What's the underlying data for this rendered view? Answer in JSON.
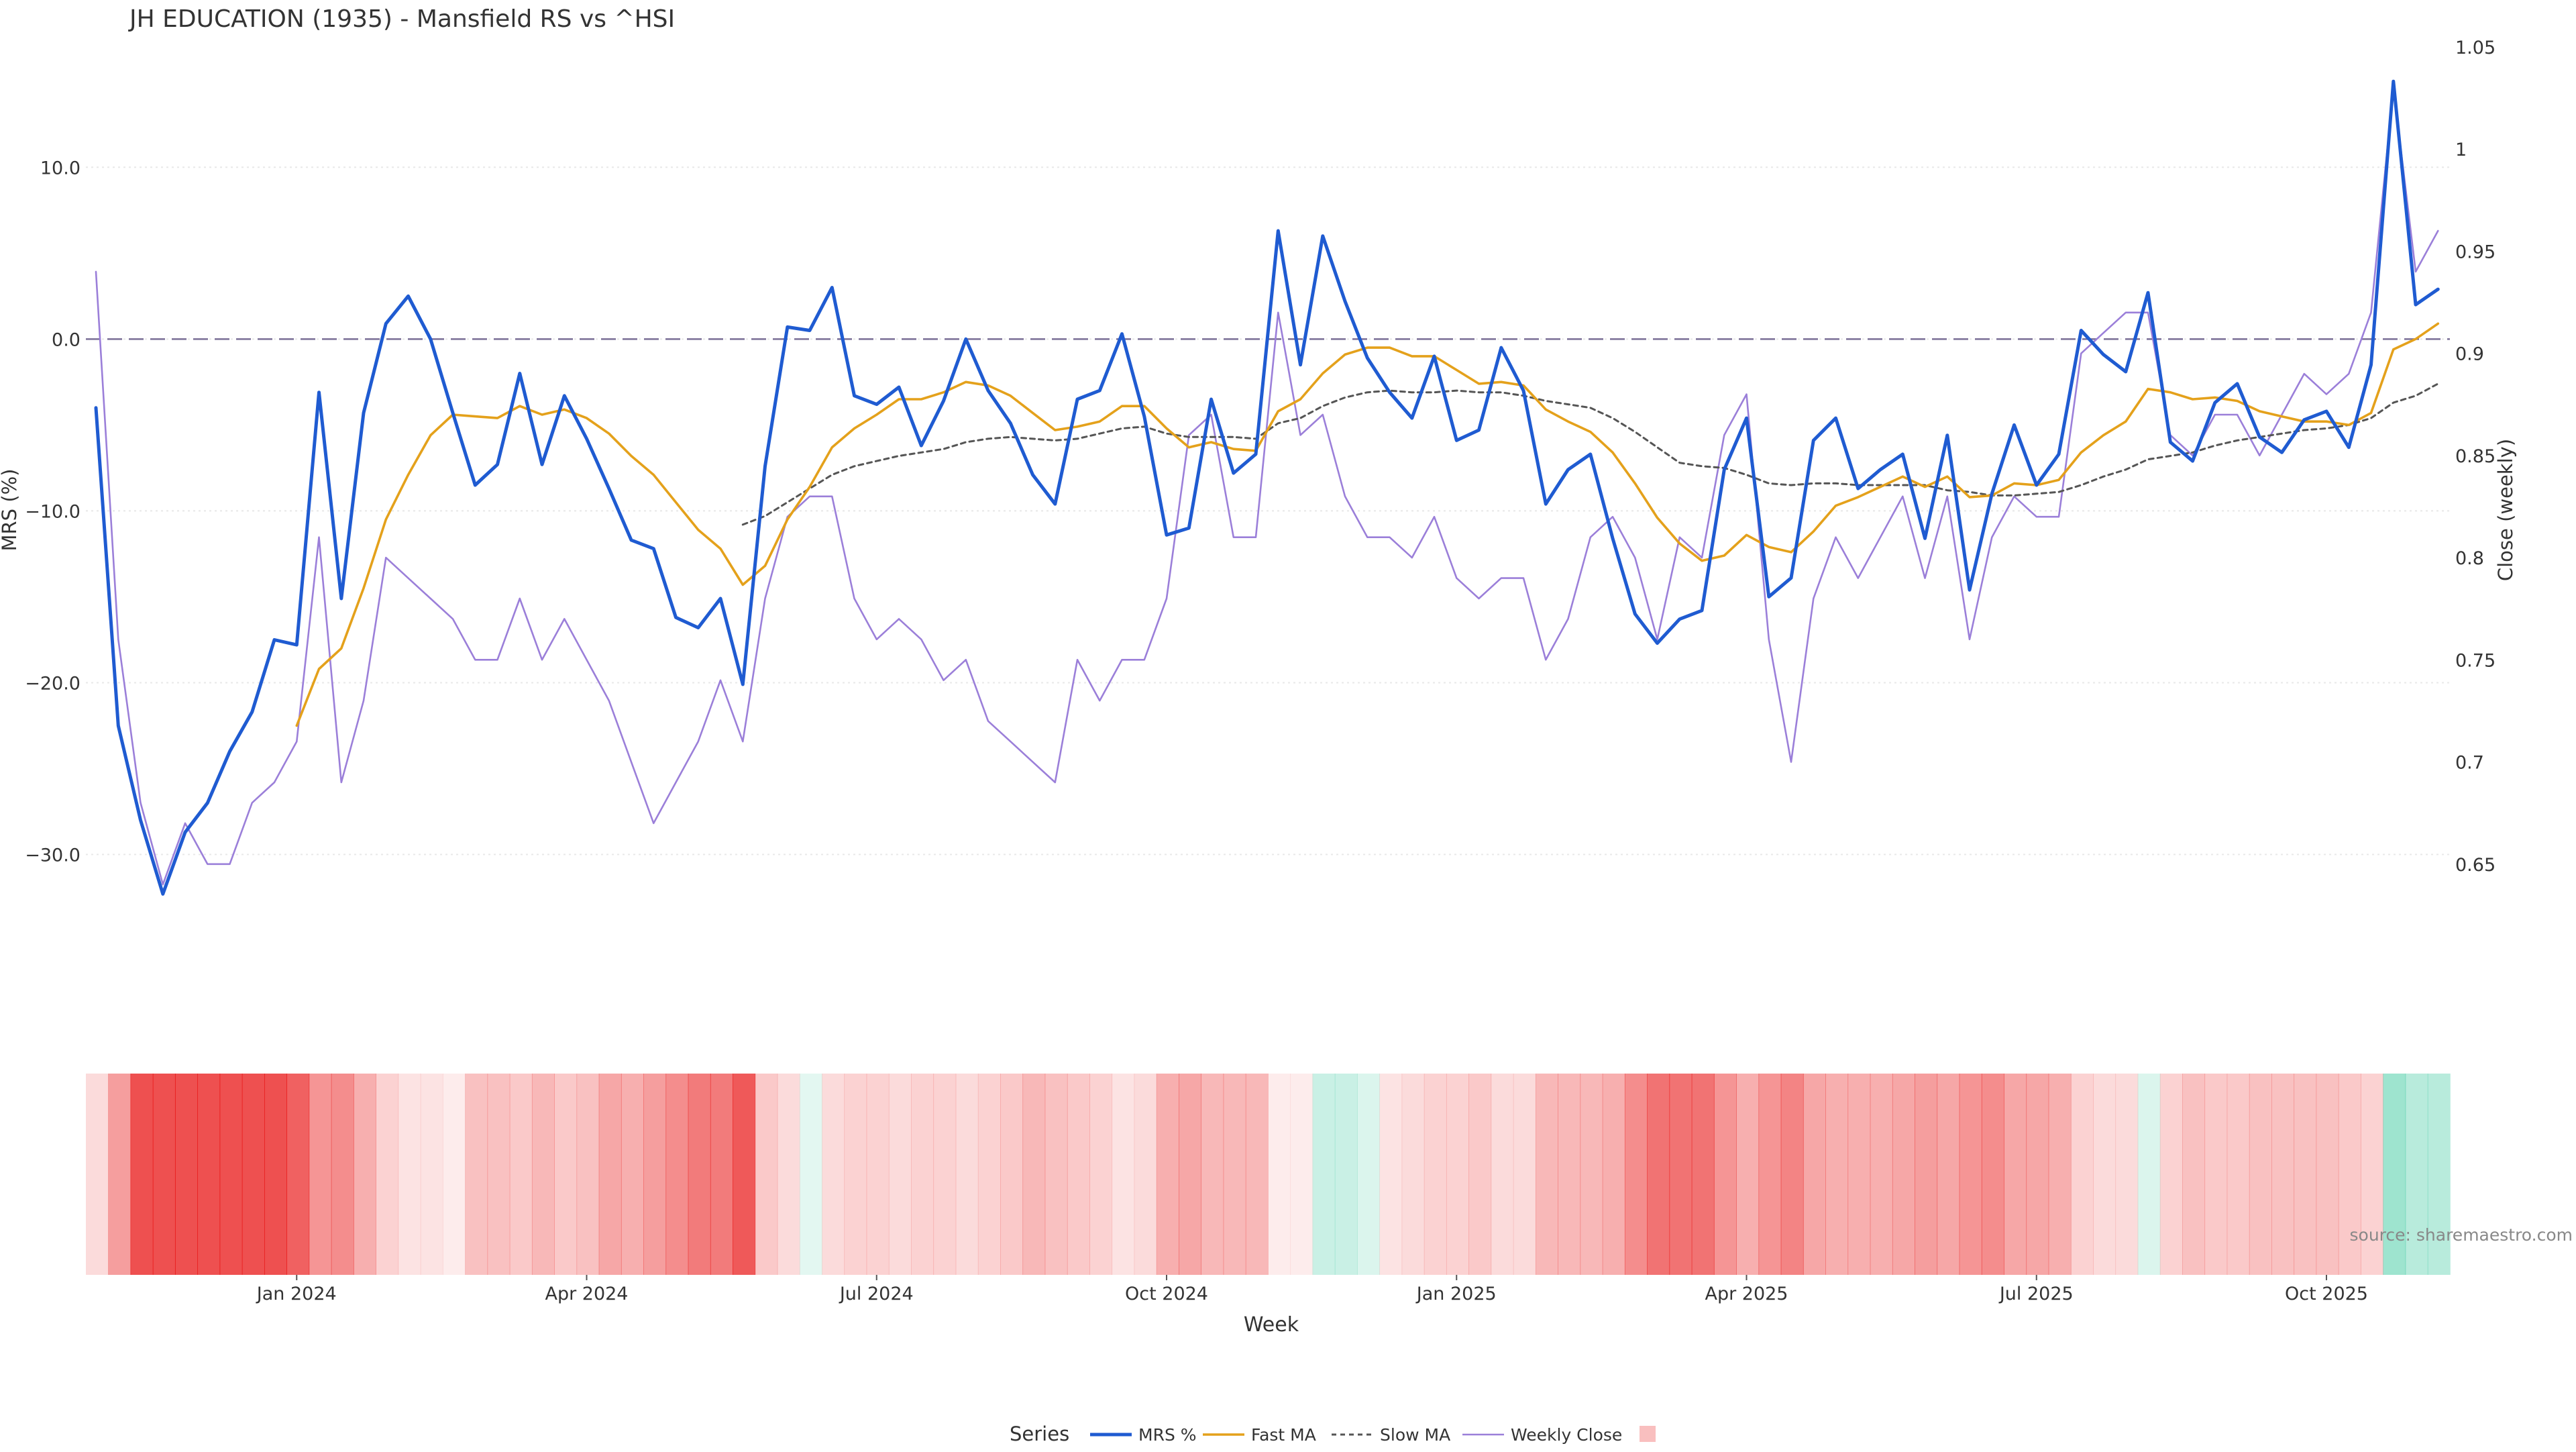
{
  "chart_data": {
    "type": "line",
    "title": "JH EDUCATION (1935) - Mansfield RS vs ^HSI",
    "xlabel": "Week",
    "ylabel_left": "MRS (%)",
    "ylabel_right": "Close (weekly)",
    "ylim_left": [
      -36.5,
      17
    ],
    "ylim_right": [
      0.6,
      1.05
    ],
    "yticks_left": [
      10,
      0,
      -10,
      -20,
      -30
    ],
    "yticks_left_labels": [
      "10.0",
      "0.0",
      "−10.0",
      "−20.0",
      "−30.0"
    ],
    "yticks_right": [
      1.05,
      1,
      0.95,
      0.9,
      0.85,
      0.8,
      0.75,
      0.7,
      0.65
    ],
    "yticks_right_labels": [
      "1.05",
      "1",
      "0.95",
      "0.9",
      "0.85",
      "0.8",
      "0.75",
      "0.7",
      "0.65"
    ],
    "x_tick_indices": [
      9,
      22,
      35,
      48,
      61,
      74,
      87,
      100
    ],
    "x_tick_labels": [
      "Jan 2024",
      "Apr 2024",
      "Jul 2024",
      "Oct 2024",
      "Jan 2025",
      "Apr 2025",
      "Jul 2025",
      "Oct 2025"
    ],
    "zero_line": 0,
    "series": [
      {
        "name": "MRS %",
        "color": "#1f5bd1",
        "style": "solid",
        "axis": "left",
        "values": [
          -4,
          -22.5,
          -28,
          -32.3,
          -28.7,
          -27,
          -24,
          -21.7,
          -17.5,
          -17.8,
          -3.1,
          -15.1,
          -4.3,
          0.9,
          2.5,
          0,
          -4.3,
          -8.5,
          -7.3,
          -2,
          -7.3,
          -3.3,
          -5.8,
          -8.7,
          -11.7,
          -12.2,
          -16.2,
          -16.8,
          -15.1,
          -20.1,
          -7.4,
          0.7,
          0.5,
          3,
          -3.3,
          -3.8,
          -2.8,
          -6.2,
          -3.6,
          0,
          -3,
          -4.9,
          -7.9,
          -9.6,
          -3.5,
          -3,
          0.3,
          -4.5,
          -11.4,
          -11,
          -3.5,
          -7.8,
          -6.7,
          6.3,
          -1.5,
          6,
          2.2,
          -1.1,
          -3.1,
          -4.6,
          -1,
          -5.9,
          -5.3,
          -0.5,
          -3,
          -9.6,
          -7.6,
          -6.7,
          -11.6,
          -16,
          -17.7,
          -16.3,
          -15.8,
          -7.6,
          -4.6,
          -15,
          -13.9,
          -5.9,
          -4.6,
          -8.7,
          -7.6,
          -6.7,
          -11.6,
          -5.6,
          -14.6,
          -9,
          -5,
          -8.5,
          -6.7,
          0.5,
          -0.9,
          -1.9,
          2.7,
          -6,
          -7.1,
          -3.7,
          -2.6,
          -5.7,
          -6.6,
          -4.7,
          -4.2,
          -6.3,
          -1.5,
          15,
          2,
          2.9
        ]
      },
      {
        "name": "Fast MA",
        "color": "#e4a11b",
        "style": "solid",
        "axis": "left",
        "values": [
          null,
          null,
          null,
          null,
          null,
          null,
          null,
          null,
          null,
          -22.5,
          -19.2,
          -18,
          -14.5,
          -10.5,
          -7.9,
          -5.6,
          -4.4,
          -4.5,
          -4.6,
          -3.9,
          -4.4,
          -4.1,
          -4.6,
          -5.5,
          -6.8,
          -7.9,
          -9.5,
          -11.1,
          -12.2,
          -14.3,
          -13.2,
          -10.5,
          -8.6,
          -6.3,
          -5.2,
          -4.4,
          -3.5,
          -3.5,
          -3.1,
          -2.5,
          -2.7,
          -3.3,
          -4.3,
          -5.3,
          -5.1,
          -4.8,
          -3.9,
          -3.9,
          -5.2,
          -6.3,
          -6,
          -6.4,
          -6.5,
          -4.2,
          -3.5,
          -2,
          -0.9,
          -0.5,
          -0.5,
          -1,
          -1,
          -1.8,
          -2.6,
          -2.5,
          -2.7,
          -4.1,
          -4.8,
          -5.4,
          -6.6,
          -8.4,
          -10.4,
          -11.9,
          -12.9,
          -12.6,
          -11.4,
          -12.1,
          -12.4,
          -11.2,
          -9.7,
          -9.2,
          -8.6,
          -8,
          -8.6,
          -8,
          -9.2,
          -9.1,
          -8.4,
          -8.5,
          -8.2,
          -6.6,
          -5.6,
          -4.8,
          -2.9,
          -3.1,
          -3.5,
          -3.4,
          -3.6,
          -4.2,
          -4.5,
          -4.8,
          -4.8,
          -5,
          -4.3,
          -0.6,
          0,
          0.9
        ]
      },
      {
        "name": "Slow MA",
        "color": "#555555",
        "style": "dashed",
        "axis": "left",
        "values": [
          null,
          null,
          null,
          null,
          null,
          null,
          null,
          null,
          null,
          null,
          null,
          null,
          null,
          null,
          null,
          null,
          null,
          null,
          null,
          null,
          null,
          null,
          null,
          null,
          null,
          null,
          null,
          null,
          null,
          -10.8,
          -10.3,
          -9.5,
          -8.7,
          -7.9,
          -7.4,
          -7.1,
          -6.8,
          -6.6,
          -6.4,
          -6,
          -5.8,
          -5.7,
          -5.8,
          -5.9,
          -5.8,
          -5.5,
          -5.2,
          -5.1,
          -5.5,
          -5.7,
          -5.7,
          -5.7,
          -5.8,
          -4.9,
          -4.6,
          -3.9,
          -3.4,
          -3.1,
          -3,
          -3.1,
          -3.1,
          -3,
          -3.1,
          -3.1,
          -3.3,
          -3.6,
          -3.8,
          -4,
          -4.6,
          -5.4,
          -6.3,
          -7.2,
          -7.4,
          -7.5,
          -7.9,
          -8.4,
          -8.5,
          -8.4,
          -8.4,
          -8.5,
          -8.5,
          -8.5,
          -8.5,
          -8.8,
          -8.9,
          -9.1,
          -9.1,
          -9,
          -8.9,
          -8.5,
          -8,
          -7.6,
          -7,
          -6.8,
          -6.6,
          -6.2,
          -5.9,
          -5.7,
          -5.5,
          -5.3,
          -5.2,
          -5,
          -4.6,
          -3.7,
          -3.3,
          -2.6
        ]
      },
      {
        "name": "Weekly Close",
        "color": "#9b7fd9",
        "style": "solid",
        "axis": "right",
        "values": [
          0.94,
          0.76,
          0.68,
          0.64,
          0.67,
          0.65,
          0.65,
          0.68,
          0.69,
          0.71,
          0.81,
          0.69,
          0.73,
          0.8,
          0.79,
          0.78,
          0.77,
          0.75,
          0.75,
          0.78,
          0.75,
          0.77,
          0.75,
          0.73,
          0.7,
          0.67,
          0.69,
          0.71,
          0.74,
          0.71,
          0.78,
          0.82,
          0.83,
          0.83,
          0.78,
          0.76,
          0.77,
          0.76,
          0.74,
          0.75,
          0.72,
          0.71,
          0.7,
          0.69,
          0.75,
          0.73,
          0.75,
          0.75,
          0.78,
          0.86,
          0.87,
          0.81,
          0.81,
          0.92,
          0.86,
          0.87,
          0.83,
          0.81,
          0.81,
          0.8,
          0.82,
          0.79,
          0.78,
          0.79,
          0.79,
          0.75,
          0.77,
          0.81,
          0.82,
          0.8,
          0.76,
          0.81,
          0.8,
          0.86,
          0.88,
          0.76,
          0.7,
          0.78,
          0.81,
          0.79,
          0.81,
          0.83,
          0.79,
          0.83,
          0.76,
          0.81,
          0.83,
          0.82,
          0.82,
          0.9,
          0.91,
          0.92,
          0.92,
          0.86,
          0.85,
          0.87,
          0.87,
          0.85,
          0.87,
          0.89,
          0.88,
          0.89,
          0.92,
          1.03,
          0.94,
          0.96
        ]
      }
    ],
    "heatmap_strip": {
      "label": "",
      "values": [
        -0.15,
        -0.5,
        -0.95,
        -0.95,
        -0.95,
        -0.95,
        -0.95,
        -0.95,
        -0.95,
        -0.85,
        -0.55,
        -0.6,
        -0.4,
        -0.2,
        -0.1,
        -0.1,
        -0.05,
        -0.3,
        -0.3,
        -0.25,
        -0.35,
        -0.25,
        -0.3,
        -0.45,
        -0.4,
        -0.5,
        -0.6,
        -0.7,
        -0.7,
        -0.9,
        -0.25,
        -0.15,
        0.1,
        -0.15,
        -0.2,
        -0.2,
        -0.15,
        -0.2,
        -0.2,
        -0.15,
        -0.2,
        -0.25,
        -0.35,
        -0.3,
        -0.25,
        -0.2,
        -0.1,
        -0.15,
        -0.4,
        -0.45,
        -0.35,
        -0.35,
        -0.35,
        -0.05,
        -0.05,
        0.25,
        0.25,
        0.15,
        -0.1,
        -0.15,
        -0.2,
        -0.2,
        -0.25,
        -0.15,
        -0.15,
        -0.35,
        -0.35,
        -0.35,
        -0.4,
        -0.6,
        -0.75,
        -0.75,
        -0.75,
        -0.55,
        -0.4,
        -0.55,
        -0.65,
        -0.45,
        -0.4,
        -0.4,
        -0.4,
        -0.45,
        -0.5,
        -0.45,
        -0.55,
        -0.6,
        -0.45,
        -0.45,
        -0.4,
        -0.2,
        -0.15,
        -0.15,
        0.15,
        -0.2,
        -0.3,
        -0.25,
        -0.25,
        -0.3,
        -0.3,
        -0.3,
        -0.3,
        -0.25,
        -0.2,
        0.5,
        0.35,
        0.35
      ]
    },
    "legend": {
      "title": "Series",
      "position": "bottom-center",
      "entries": [
        "MRS %",
        "Fast MA",
        "Slow MA",
        "Weekly Close",
        ""
      ]
    },
    "source": "source: sharemaestro.com",
    "colors": {
      "positive": "#00b882",
      "negative": "#e60000",
      "grid": "#e8e8e8",
      "zero_line": "#7a6f96"
    }
  }
}
